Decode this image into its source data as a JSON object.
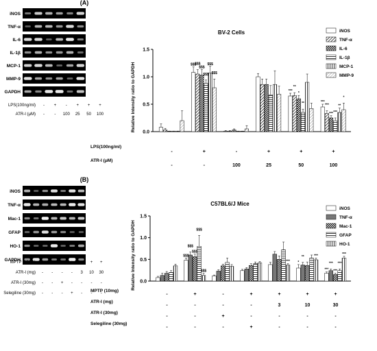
{
  "panels": [
    {
      "panel_label": "(A)",
      "blot": {
        "rows": [
          "iNOS",
          "TNF-α",
          "IL-6",
          "IL-1β",
          "MCP-1",
          "MMP-9",
          "GAPDH"
        ],
        "treatments": [
          {
            "label": "LPS(100ng/ml)",
            "values": [
              "-",
              "+",
              "-",
              "+",
              "+",
              "+"
            ]
          },
          {
            "label": "ATR-I (μM)",
            "values": [
              "-",
              "-",
              "100",
              "25",
              "50",
              "100"
            ]
          }
        ]
      },
      "chart_data": {
        "type": "bar",
        "title": "BV-2 Cells",
        "ylabel": "Relative Intensity ratio to GAPDH",
        "ylim": [
          0,
          1.5
        ],
        "yticks": [
          "0.0",
          "0.5",
          "1.0",
          "1.5"
        ],
        "series": [
          {
            "name": "iNOS",
            "values": [
              0.08,
              1.08,
              0.01,
              1.0,
              0.65,
              0.45
            ],
            "errors": [
              0.06,
              0.1,
              0.01,
              0.06,
              0.05,
              0.05
            ],
            "labels": [
              "",
              "$$$",
              "",
              "",
              "***",
              "***"
            ]
          },
          {
            "name": "TNF-α",
            "values": [
              0.03,
              1.05,
              0.01,
              0.86,
              0.66,
              0.33
            ],
            "errors": [
              0.03,
              0.08,
              0.01,
              0.1,
              0.05,
              0.05
            ],
            "labels": [
              "",
              "$$$",
              "",
              "",
              "**",
              "***"
            ]
          },
          {
            "name": "IL-6",
            "values": [
              0.0,
              1.03,
              0.03,
              0.86,
              0.6,
              0.25
            ],
            "errors": [
              0.01,
              0.1,
              0.02,
              0.1,
              0.06,
              0.04
            ],
            "labels": [
              "",
              "$$$",
              "",
              "",
              "*",
              "***"
            ]
          },
          {
            "name": "IL-1β",
            "values": [
              0.0,
              0.88,
              0.0,
              0.67,
              0.35,
              0.2
            ],
            "errors": [
              0.01,
              0.06,
              0.01,
              0.17,
              0.06,
              0.05
            ],
            "labels": [
              "",
              "$$$",
              "",
              "",
              "**",
              "***"
            ]
          },
          {
            "name": "MCP-1",
            "values": [
              0.0,
              1.07,
              0.0,
              0.86,
              0.9,
              0.35
            ],
            "errors": [
              0.01,
              0.12,
              0.01,
              0.25,
              0.15,
              0.08
            ],
            "labels": [
              "",
              "$$$",
              "",
              "",
              "",
              "**"
            ]
          },
          {
            "name": "MMP-9",
            "values": [
              0.2,
              0.8,
              0.05,
              0.68,
              0.42,
              0.4
            ],
            "errors": [
              0.18,
              0.16,
              0.06,
              0.15,
              0.1,
              0.12
            ],
            "labels": [
              "",
              "$$$",
              "",
              "",
              "",
              "*"
            ]
          }
        ],
        "groups": [
          {
            "label": "LPS(100ng/ml)",
            "values": [
              "-",
              "+",
              "-",
              "+",
              "+",
              "+"
            ]
          },
          {
            "label": "ATR-I (μM)",
            "values": [
              "-",
              "-",
              "100",
              "25",
              "50",
              "100"
            ]
          }
        ]
      }
    },
    {
      "panel_label": "(B)",
      "blot": {
        "rows": [
          "iNOS",
          "TNF-α",
          "Mac-1",
          "GFAP",
          "HO-1",
          "GAPDH"
        ],
        "treatments": [
          {
            "label": "MPTP (10mg)",
            "values": [
              "-",
              "+",
              "-",
              "+",
              "+",
              "+",
              "+"
            ]
          },
          {
            "label": "ATR-I (mg)",
            "values": [
              "-",
              "-",
              "-",
              "-",
              "3",
              "10",
              "30"
            ]
          },
          {
            "label": "ATR-I (30mg)",
            "values": [
              "-",
              "-",
              "+",
              "-",
              "-",
              "-",
              "-"
            ]
          },
          {
            "label": "Selegiline (30mg)",
            "values": [
              "-",
              "-",
              "-",
              "+",
              "-",
              "-",
              "-"
            ]
          }
        ]
      },
      "chart_data": {
        "type": "bar",
        "title": "C57BL6/J Mice",
        "ylabel": "Relative Intensity ratio to GAPDH",
        "ylim": [
          0,
          1.5
        ],
        "yticks": [
          "0.0",
          "0.5",
          "1.0",
          "1.5"
        ],
        "series": [
          {
            "name": "iNOS",
            "values": [
              0.08,
              0.48,
              0.12,
              0.24,
              0.38,
              0.3,
              0.18
            ],
            "errors": [
              0.03,
              0.05,
              0.02,
              0.03,
              0.05,
              0.08,
              0.03
            ],
            "labels": [
              "",
              "$$$",
              "",
              "",
              "",
              "*",
              "***"
            ]
          },
          {
            "name": "TNF-α",
            "values": [
              0.13,
              0.6,
              0.23,
              0.28,
              0.62,
              0.37,
              0.24
            ],
            "errors": [
              0.05,
              0.07,
              0.03,
              0.03,
              0.06,
              0.06,
              0.04
            ],
            "labels": [
              "",
              "$$$",
              "",
              "",
              "",
              "**",
              "***"
            ]
          },
          {
            "name": "Mac-1",
            "values": [
              0.18,
              0.56,
              0.35,
              0.36,
              0.5,
              0.36,
              0.15
            ],
            "errors": [
              0.04,
              0.06,
              0.04,
              0.04,
              0.08,
              0.08,
              0.03
            ],
            "labels": [
              "",
              "$$$",
              "",
              "",
              "",
              "",
              "***"
            ]
          },
          {
            "name": "GFAP",
            "values": [
              0.2,
              0.8,
              0.43,
              0.4,
              0.72,
              0.53,
              0.24
            ],
            "errors": [
              0.04,
              0.25,
              0.1,
              0.04,
              0.18,
              0.07,
              0.04
            ],
            "labels": [
              "",
              "$$$",
              "",
              "",
              "",
              "",
              "***"
            ]
          },
          {
            "name": "HO-1",
            "values": [
              0.35,
              0.13,
              0.34,
              0.42,
              0.37,
              0.49,
              0.53
            ],
            "errors": [
              0.04,
              0.05,
              0.04,
              0.03,
              0.03,
              0.04,
              0.04
            ],
            "labels": [
              "",
              "$$$",
              "",
              "",
              "***",
              "***",
              "***"
            ]
          }
        ],
        "groups": [
          {
            "label": "MPTP (10mg)",
            "values": [
              "-",
              "+",
              "-",
              "+",
              "+",
              "+",
              "+"
            ]
          },
          {
            "label": "ATR-I (mg)",
            "values": [
              "-",
              "-",
              "-",
              "-",
              "3",
              "10",
              "30"
            ]
          },
          {
            "label": "ATR-I (30mg)",
            "values": [
              "-",
              "-",
              "+",
              "-",
              "-",
              "-",
              "-"
            ]
          },
          {
            "label": "Selegiline (30mg)",
            "values": [
              "-",
              "-",
              "-",
              "+",
              "-",
              "-",
              "-"
            ]
          }
        ]
      }
    }
  ]
}
